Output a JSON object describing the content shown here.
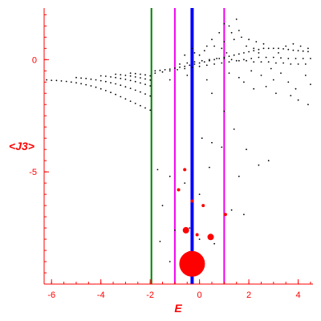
{
  "chart_data": {
    "type": "scatter",
    "xlabel": "E",
    "ylabel": "<J3>",
    "xlim": [
      -6.3,
      4.6
    ],
    "ylim": [
      -10.0,
      2.3
    ],
    "x_ticks": [
      -6,
      -4,
      -2,
      0,
      2,
      4
    ],
    "x_tick_labels": [
      "-6",
      "-4",
      "-2",
      "0",
      "2",
      "4"
    ],
    "y_ticks": [
      0,
      -5
    ],
    "y_tick_labels": [
      "0",
      "-5"
    ],
    "grid": false,
    "colors": {
      "axes": "#ff0000",
      "points": "#000000",
      "highlight": "#ff0000",
      "line_green": "#008000",
      "line_magenta": "#ee00ee",
      "line_blue": "#0000ff"
    },
    "vertical_lines": [
      {
        "x": -1.95,
        "color": "#008000"
      },
      {
        "x": -1.0,
        "color": "#ee00ee"
      },
      {
        "x": -0.3,
        "color": "#0000ff"
      },
      {
        "x": 1.0,
        "color": "#ee00ee"
      }
    ],
    "series": [
      {
        "values": [
          [
            -6.2,
            -0.9
          ],
          [
            -6.0,
            -0.92
          ],
          [
            -5.8,
            -0.93
          ],
          [
            -5.6,
            -0.95
          ],
          [
            -5.4,
            -0.97
          ],
          [
            -5.2,
            -1.0
          ],
          [
            -5.0,
            -1.03
          ],
          [
            -4.8,
            -1.07
          ],
          [
            -4.6,
            -1.12
          ],
          [
            -4.4,
            -1.17
          ],
          [
            -4.2,
            -1.23
          ],
          [
            -4.0,
            -1.3
          ],
          [
            -3.8,
            -1.38
          ],
          [
            -3.6,
            -1.46
          ],
          [
            -3.4,
            -1.55
          ],
          [
            -3.2,
            -1.65
          ],
          [
            -3.0,
            -1.75
          ],
          [
            -2.8,
            -1.85
          ],
          [
            -2.6,
            -1.95
          ],
          [
            -2.4,
            -2.05
          ],
          [
            -2.2,
            -2.15
          ],
          [
            -2.0,
            -2.25
          ],
          [
            -5.0,
            -0.8
          ],
          [
            -4.8,
            -0.82
          ],
          [
            -4.6,
            -0.84
          ],
          [
            -4.4,
            -0.87
          ],
          [
            -4.2,
            -0.9
          ],
          [
            -4.0,
            -0.94
          ],
          [
            -3.8,
            -0.98
          ],
          [
            -3.6,
            -1.03
          ],
          [
            -3.4,
            -1.08
          ],
          [
            -3.2,
            -1.14
          ],
          [
            -3.0,
            -1.21
          ],
          [
            -2.8,
            -1.28
          ],
          [
            -2.6,
            -1.36
          ],
          [
            -2.4,
            -1.44
          ],
          [
            -2.2,
            -1.53
          ],
          [
            -2.0,
            -1.62
          ],
          [
            -4.0,
            -0.72
          ],
          [
            -3.8,
            -0.74
          ],
          [
            -3.6,
            -0.77
          ],
          [
            -3.4,
            -0.8
          ],
          [
            -3.2,
            -0.84
          ],
          [
            -3.0,
            -0.88
          ],
          [
            -2.8,
            -0.93
          ],
          [
            -2.6,
            -0.98
          ],
          [
            -2.4,
            -1.04
          ],
          [
            -2.2,
            -1.1
          ],
          [
            -2.0,
            -1.17
          ],
          [
            -3.4,
            -0.65
          ],
          [
            -3.2,
            -0.67
          ],
          [
            -3.0,
            -0.7
          ],
          [
            -2.8,
            -0.73
          ],
          [
            -2.6,
            -0.77
          ],
          [
            -2.4,
            -0.81
          ],
          [
            -2.2,
            -0.86
          ],
          [
            -2.0,
            -0.91
          ],
          [
            -2.8,
            -0.6
          ],
          [
            -2.6,
            -0.62
          ],
          [
            -2.4,
            -0.65
          ],
          [
            -2.2,
            -0.68
          ],
          [
            -2.0,
            -0.72
          ],
          [
            -1.8,
            -0.5
          ],
          [
            -1.6,
            -0.48
          ],
          [
            -1.4,
            -0.45
          ],
          [
            -1.2,
            -0.42
          ],
          [
            -1.0,
            -0.38
          ],
          [
            -0.8,
            -0.34
          ],
          [
            -0.6,
            -0.3
          ],
          [
            -0.4,
            -0.25
          ],
          [
            -0.2,
            -0.2
          ],
          [
            0.0,
            -0.15
          ],
          [
            0.2,
            -0.1
          ],
          [
            0.4,
            -0.05
          ],
          [
            0.6,
            0.0
          ],
          [
            0.8,
            0.05
          ],
          [
            1.0,
            0.1
          ],
          [
            1.2,
            0.15
          ],
          [
            1.4,
            0.2
          ],
          [
            1.6,
            0.25
          ],
          [
            1.8,
            0.3
          ],
          [
            2.0,
            0.35
          ],
          [
            2.2,
            0.4
          ],
          [
            2.4,
            0.45
          ],
          [
            2.6,
            0.5
          ],
          [
            2.8,
            0.5
          ],
          [
            3.0,
            0.5
          ],
          [
            3.2,
            0.5
          ],
          [
            3.4,
            0.48
          ],
          [
            3.6,
            0.45
          ],
          [
            3.8,
            0.42
          ],
          [
            4.0,
            0.4
          ],
          [
            4.2,
            0.38
          ],
          [
            4.4,
            0.36
          ],
          [
            -1.8,
            -0.6
          ],
          [
            -1.5,
            -0.55
          ],
          [
            -1.2,
            -0.5
          ],
          [
            -0.9,
            -0.45
          ],
          [
            -0.6,
            -0.4
          ],
          [
            -0.3,
            -0.35
          ],
          [
            0.0,
            -0.3
          ],
          [
            0.3,
            -0.25
          ],
          [
            0.6,
            -0.2
          ],
          [
            0.9,
            -0.15
          ],
          [
            1.2,
            -0.1
          ],
          [
            1.5,
            -0.05
          ],
          [
            1.8,
            0.0
          ],
          [
            2.1,
            0.05
          ],
          [
            2.4,
            0.1
          ],
          [
            2.7,
            0.1
          ],
          [
            3.0,
            0.1
          ],
          [
            3.3,
            0.08
          ],
          [
            3.6,
            0.05
          ],
          [
            3.9,
            0.05
          ],
          [
            4.2,
            0.05
          ],
          [
            4.5,
            0.05
          ],
          [
            -0.8,
            -0.2
          ],
          [
            -0.5,
            -0.15
          ],
          [
            -0.2,
            -0.1
          ],
          [
            0.1,
            -0.05
          ],
          [
            0.4,
            0.0
          ],
          [
            0.7,
            0.05
          ],
          [
            1.0,
            0.05
          ],
          [
            1.3,
            0.0
          ],
          [
            1.6,
            -0.05
          ],
          [
            1.9,
            -0.05
          ],
          [
            2.2,
            -0.1
          ],
          [
            2.5,
            -0.1
          ],
          [
            2.8,
            -0.1
          ],
          [
            3.1,
            -0.15
          ],
          [
            3.4,
            -0.15
          ],
          [
            3.7,
            -0.2
          ],
          [
            4.0,
            -0.2
          ],
          [
            4.3,
            -0.2
          ],
          [
            -0.6,
            0.2
          ],
          [
            -0.2,
            0.3
          ],
          [
            0.2,
            0.4
          ],
          [
            0.6,
            0.6
          ],
          [
            1.0,
            0.8
          ],
          [
            1.4,
            0.9
          ],
          [
            1.7,
            1.0
          ],
          [
            2.0,
            0.9
          ],
          [
            2.3,
            0.8
          ],
          [
            2.6,
            0.7
          ],
          [
            0.8,
            1.2
          ],
          [
            1.2,
            1.5
          ],
          [
            1.5,
            1.8
          ],
          [
            1.0,
            1.6
          ],
          [
            1.3,
            1.2
          ],
          [
            1.9,
            0.6
          ],
          [
            2.2,
            0.5
          ],
          [
            0.5,
            0.9
          ],
          [
            0.9,
            0.5
          ],
          [
            1.6,
            1.3
          ],
          [
            2.4,
            0.3
          ],
          [
            3.2,
            0.3
          ],
          [
            3.5,
            0.6
          ],
          [
            3.8,
            0.7
          ],
          [
            4.1,
            0.6
          ],
          [
            4.4,
            0.5
          ],
          [
            0.3,
            0.6
          ],
          [
            -0.3,
            0.5
          ],
          [
            0.0,
            0.2
          ],
          [
            1.1,
            0.3
          ],
          [
            1.2,
            -0.6
          ],
          [
            1.6,
            -0.8
          ],
          [
            2.1,
            -0.5
          ],
          [
            2.5,
            -0.7
          ],
          [
            3.0,
            -0.9
          ],
          [
            3.3,
            -0.6
          ],
          [
            3.6,
            -1.0
          ],
          [
            3.9,
            -1.3
          ],
          [
            4.3,
            -0.7
          ],
          [
            4.5,
            -1.1
          ],
          [
            2.7,
            -1.2
          ],
          [
            2.2,
            -1.3
          ],
          [
            1.8,
            -1.0
          ],
          [
            3.1,
            -1.5
          ],
          [
            4.0,
            -1.8
          ],
          [
            4.4,
            -2.0
          ],
          [
            3.7,
            -1.6
          ],
          [
            2.9,
            -0.4
          ],
          [
            0.5,
            -1.5
          ],
          [
            1.0,
            -2.3
          ],
          [
            0.3,
            -0.9
          ],
          [
            -0.5,
            -0.7
          ],
          [
            -1.2,
            -0.9
          ],
          [
            0.1,
            -3.5
          ],
          [
            0.5,
            -3.7
          ],
          [
            1.4,
            -3.1
          ],
          [
            1.9,
            -4.0
          ],
          [
            2.4,
            -4.7
          ],
          [
            2.8,
            -4.5
          ],
          [
            0.9,
            -3.9
          ],
          [
            -1.7,
            -4.9
          ],
          [
            -1.2,
            -5.2
          ],
          [
            -0.6,
            -5.5
          ],
          [
            0.4,
            -4.8
          ],
          [
            0.0,
            -6.0
          ],
          [
            1.6,
            -5.2
          ],
          [
            1.3,
            -6.7
          ],
          [
            1.8,
            -6.9
          ],
          [
            -1.5,
            -6.5
          ],
          [
            -1.0,
            -7.6
          ],
          [
            -1.6,
            -8.1
          ],
          [
            -0.4,
            -7.5
          ],
          [
            0.0,
            -8.0
          ],
          [
            0.6,
            -8.2
          ],
          [
            -1.2,
            -9.0
          ]
        ]
      },
      {
        "values": [
          [
            -0.6,
            -4.9
          ],
          [
            -0.85,
            -5.8
          ],
          [
            -0.3,
            -6.3
          ],
          [
            0.15,
            -6.5
          ],
          [
            1.05,
            -6.9
          ],
          [
            -0.55,
            -7.6
          ],
          [
            0.45,
            -7.9
          ],
          [
            -0.1,
            -7.8
          ],
          [
            -0.4,
            -8.6
          ],
          [
            -0.3,
            -9.1
          ]
        ],
        "sizes": [
          2,
          2,
          2,
          2,
          2,
          4,
          4,
          2,
          2,
          16
        ]
      }
    ]
  }
}
